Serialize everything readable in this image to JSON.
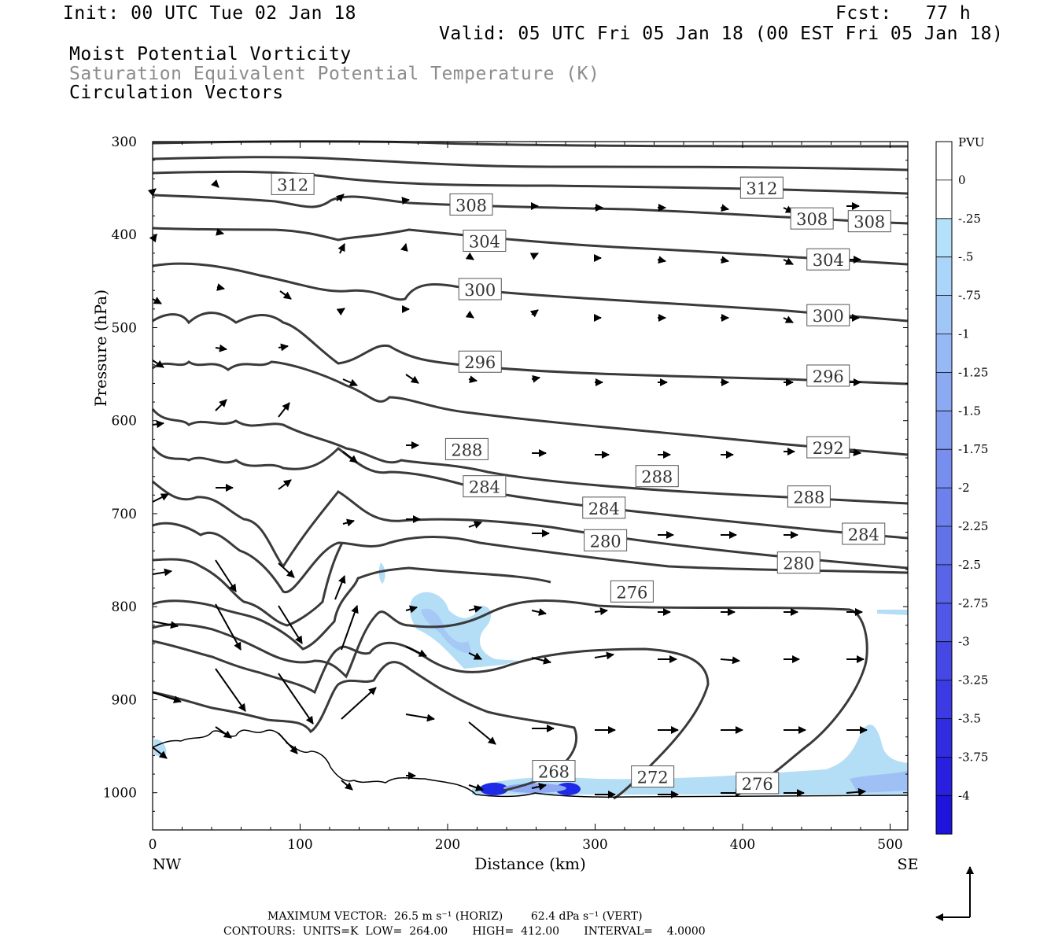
{
  "header": {
    "init": "Init: 00 UTC Tue 02 Jan 18",
    "fcst": "Fcst:   77 h",
    "valid": "Valid: 05 UTC Fri 05 Jan 18 (00 EST Fri 05 Jan 18)",
    "field1": "Moist Potential Vorticity",
    "field2": "Saturation Equivalent Potential Temperature (K)",
    "field3": "Circulation Vectors"
  },
  "footer": {
    "line1": "MAXIMUM VECTOR:  26.5 m s⁻¹ (HORIZ)        62.4 dPa s⁻¹ (VERT)",
    "line2": "CONTOURS:  UNITS=K  LOW=  264.00       HIGH=  412.00       INTERVAL=    4.0000"
  },
  "colors": {
    "contour": "#3a3a3a",
    "pv_light": "#b4ddf6",
    "pv_mid": "#8fa9f2",
    "pv_dark": "#1e2ae6"
  },
  "chart_data": {
    "type": "contour",
    "xlabel": "Distance (km)",
    "ylabel": "Pressure (hPa)",
    "xlim": [
      0,
      512
    ],
    "ylim": [
      1040,
      300
    ],
    "x_ticks": [
      0,
      100,
      200,
      300,
      400,
      500
    ],
    "y_ticks": [
      300,
      400,
      500,
      600,
      700,
      800,
      900,
      1000
    ],
    "x_end_labels": {
      "left": "NW",
      "right": "SE"
    },
    "colorbar": {
      "title": "PVU",
      "ticks": [
        "0",
        "-.25",
        "-.5",
        "-.75",
        "-1",
        "-1.25",
        "-1.5",
        "-1.75",
        "-2",
        "-2.25",
        "-2.5",
        "-2.75",
        "-3",
        "-3.25",
        "-3.5",
        "-3.75",
        "-4"
      ],
      "colors": [
        "#ffffff",
        "#ffffff",
        "#b4e0fa",
        "#aad4f8",
        "#a0c6f6",
        "#96b8f4",
        "#8caaf2",
        "#829cf0",
        "#788eee",
        "#6e80ec",
        "#6472ea",
        "#5a64e8",
        "#5056e6",
        "#4648e4",
        "#3c3ae2",
        "#322ce0",
        "#2820de",
        "#1e14dc"
      ]
    },
    "contour_levels_labeled": [
      {
        "value": "312",
        "x": 95,
        "p": 346
      },
      {
        "value": "312",
        "x": 413,
        "p": 350
      },
      {
        "value": "308",
        "x": 216,
        "p": 368
      },
      {
        "value": "308",
        "x": 447,
        "p": 383
      },
      {
        "value": "308",
        "x": 486,
        "p": 386
      },
      {
        "value": "304",
        "x": 225,
        "p": 407
      },
      {
        "value": "304",
        "x": 458,
        "p": 427
      },
      {
        "value": "300",
        "x": 222,
        "p": 459
      },
      {
        "value": "300",
        "x": 458,
        "p": 487
      },
      {
        "value": "296",
        "x": 222,
        "p": 537
      },
      {
        "value": "296",
        "x": 458,
        "p": 552
      },
      {
        "value": "292",
        "x": 458,
        "p": 629
      },
      {
        "value": "288",
        "x": 213,
        "p": 631
      },
      {
        "value": "288",
        "x": 342,
        "p": 660
      },
      {
        "value": "288",
        "x": 445,
        "p": 682
      },
      {
        "value": "284",
        "x": 225,
        "p": 671
      },
      {
        "value": "284",
        "x": 306,
        "p": 694
      },
      {
        "value": "284",
        "x": 482,
        "p": 722
      },
      {
        "value": "280",
        "x": 307,
        "p": 729
      },
      {
        "value": "280",
        "x": 438,
        "p": 753
      },
      {
        "value": "276",
        "x": 325,
        "p": 784
      },
      {
        "value": "276",
        "x": 410,
        "p": 990
      },
      {
        "value": "272",
        "x": 339,
        "p": 983
      },
      {
        "value": "268",
        "x": 272,
        "p": 977
      }
    ]
  }
}
